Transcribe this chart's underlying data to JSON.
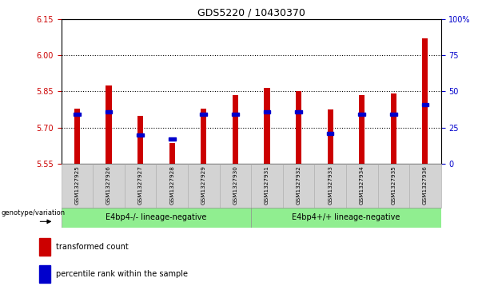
{
  "title": "GDS5220 / 10430370",
  "samples": [
    "GSM1327925",
    "GSM1327926",
    "GSM1327927",
    "GSM1327928",
    "GSM1327929",
    "GSM1327930",
    "GSM1327931",
    "GSM1327932",
    "GSM1327933",
    "GSM1327934",
    "GSM1327935",
    "GSM1327936"
  ],
  "red_values": [
    5.78,
    5.875,
    5.75,
    5.635,
    5.78,
    5.835,
    5.865,
    5.85,
    5.775,
    5.835,
    5.84,
    6.07
  ],
  "blue_values_pct": [
    34,
    36,
    20,
    17,
    34,
    34,
    36,
    36,
    21,
    34,
    34,
    41
  ],
  "y_min": 5.55,
  "y_max": 6.15,
  "y_ticks": [
    5.55,
    5.7,
    5.85,
    6.0,
    6.15
  ],
  "right_y_ticks": [
    0,
    25,
    50,
    75,
    100
  ],
  "right_y_labels": [
    "0",
    "25",
    "50",
    "75",
    "100%"
  ],
  "dotted_lines": [
    5.7,
    5.85,
    6.0
  ],
  "group1_label": "E4bp4-/- lineage-negative",
  "group2_label": "E4bp4+/+ lineage-negative",
  "group1_indices": [
    0,
    1,
    2,
    3,
    4,
    5
  ],
  "group2_indices": [
    6,
    7,
    8,
    9,
    10,
    11
  ],
  "group_bg_color": "#90EE90",
  "bar_bg_color": "#d3d3d3",
  "red_color": "#cc0000",
  "blue_color": "#0000cc",
  "legend_red_label": "transformed count",
  "legend_blue_label": "percentile rank within the sample",
  "genotype_label": "genotype/variation",
  "axis_label_color_left": "#cc0000",
  "axis_label_color_right": "#0000cc",
  "bar_width": 0.18
}
